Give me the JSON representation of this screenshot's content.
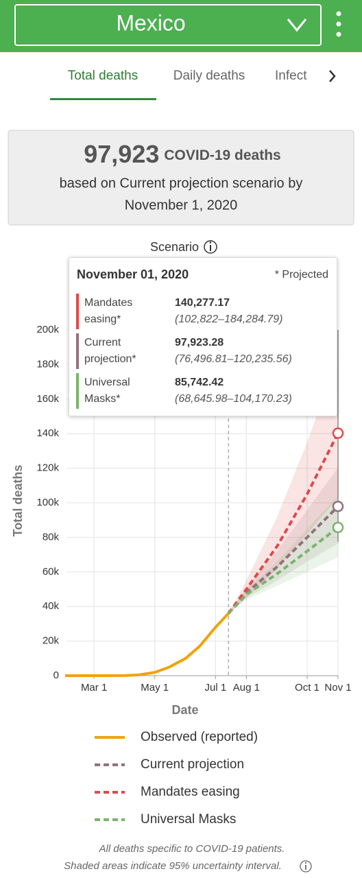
{
  "header": {
    "title": "Mexico"
  },
  "tabs": [
    "Total deaths",
    "Daily deaths",
    "Infect"
  ],
  "summary": {
    "value": "97,923",
    "unit": "COVID-19 deaths",
    "text": [
      "based on Current projection scenario by",
      "November 1, 2020"
    ]
  },
  "scenario_label": "Scenario",
  "tooltip": {
    "date": "November 01, 2020",
    "note": "* Projected",
    "rows": [
      {
        "name": "Mandates easing*",
        "value": "140,277.17",
        "range": "(102,822–184,284.79)",
        "color": "#dd4b4b"
      },
      {
        "name": "Current projection*",
        "value": "97,923.28",
        "range": "(76,496.81–120,235.56)",
        "color": "#93707a"
      },
      {
        "name": "Universal Masks*",
        "value": "85,742.42",
        "range": "(68,645.98–104,170.23)",
        "color": "#7bb36b"
      }
    ]
  },
  "chart_data": {
    "type": "line",
    "x_label": "Date",
    "y_label": "Total deaths",
    "xlim": [
      "2020-02-01",
      "2020-11-01"
    ],
    "xticks": [
      {
        "value": "2020-03-01",
        "label": "Mar 1"
      },
      {
        "value": "2020-05-01",
        "label": "May 1"
      },
      {
        "value": "2020-07-01",
        "label": "Jul 1"
      },
      {
        "value": "2020-08-01",
        "label": "Aug 1"
      },
      {
        "value": "2020-10-01",
        "label": "Oct 1"
      },
      {
        "value": "2020-11-01",
        "label": "Nov 1"
      }
    ],
    "ylim": [
      0,
      200000
    ],
    "yticks": [
      0,
      {
        "value": 20000,
        "label": "20k"
      },
      {
        "value": 40000,
        "label": "40k"
      },
      {
        "value": 60000,
        "label": "60k"
      },
      {
        "value": 80000,
        "label": "80k"
      },
      {
        "value": 100000,
        "label": "100k"
      },
      {
        "value": 120000,
        "label": "120k"
      },
      {
        "value": 140000,
        "label": "140k"
      },
      {
        "value": 160000,
        "label": "160k"
      },
      {
        "value": 180000,
        "label": "180k"
      },
      {
        "value": 200000,
        "label": "200k"
      }
    ],
    "grid": true,
    "series": [
      {
        "name": "Observed (reported)",
        "color": "#f0a30a",
        "dashed": false,
        "x": [
          "2020-02-01",
          "2020-03-01",
          "2020-03-15",
          "2020-04-01",
          "2020-04-15",
          "2020-05-01",
          "2020-05-15",
          "2020-06-01",
          "2020-06-15",
          "2020-07-01",
          "2020-07-14"
        ],
        "values": [
          0,
          0,
          0,
          30,
          450,
          1900,
          4800,
          10000,
          17000,
          28000,
          36000
        ]
      },
      {
        "name": "Current projection",
        "color": "#93707a",
        "dashed": true,
        "x": [
          "2020-07-14",
          "2020-08-01",
          "2020-09-01",
          "2020-10-01",
          "2020-11-01"
        ],
        "values": [
          36000,
          48000,
          63000,
          80000,
          97923.28
        ],
        "lower": [
          36000,
          45000,
          55000,
          66000,
          76496.81
        ],
        "upper": [
          36000,
          51000,
          72000,
          96000,
          120235.56
        ]
      },
      {
        "name": "Mandates easing",
        "color": "#dd4b4b",
        "dashed": true,
        "x": [
          "2020-07-14",
          "2020-08-01",
          "2020-09-01",
          "2020-10-01",
          "2020-11-01"
        ],
        "values": [
          36000,
          50000,
          75000,
          105000,
          140277.17
        ],
        "lower": [
          36000,
          45000,
          62000,
          82000,
          102822
        ],
        "upper": [
          36000,
          55000,
          92000,
          135000,
          184284.79
        ]
      },
      {
        "name": "Universal Masks",
        "color": "#7bb36b",
        "dashed": true,
        "x": [
          "2020-07-14",
          "2020-08-01",
          "2020-09-01",
          "2020-10-01",
          "2020-11-01"
        ],
        "values": [
          36000,
          47000,
          59000,
          72000,
          85742.42
        ],
        "lower": [
          36000,
          44000,
          52000,
          60000,
          68645.98
        ],
        "upper": [
          36000,
          50000,
          66000,
          85000,
          104170.23
        ]
      }
    ]
  },
  "footnote": [
    "All deaths specific to COVID-19 patients.",
    "Shaded areas indicate 95% uncertainty interval."
  ]
}
